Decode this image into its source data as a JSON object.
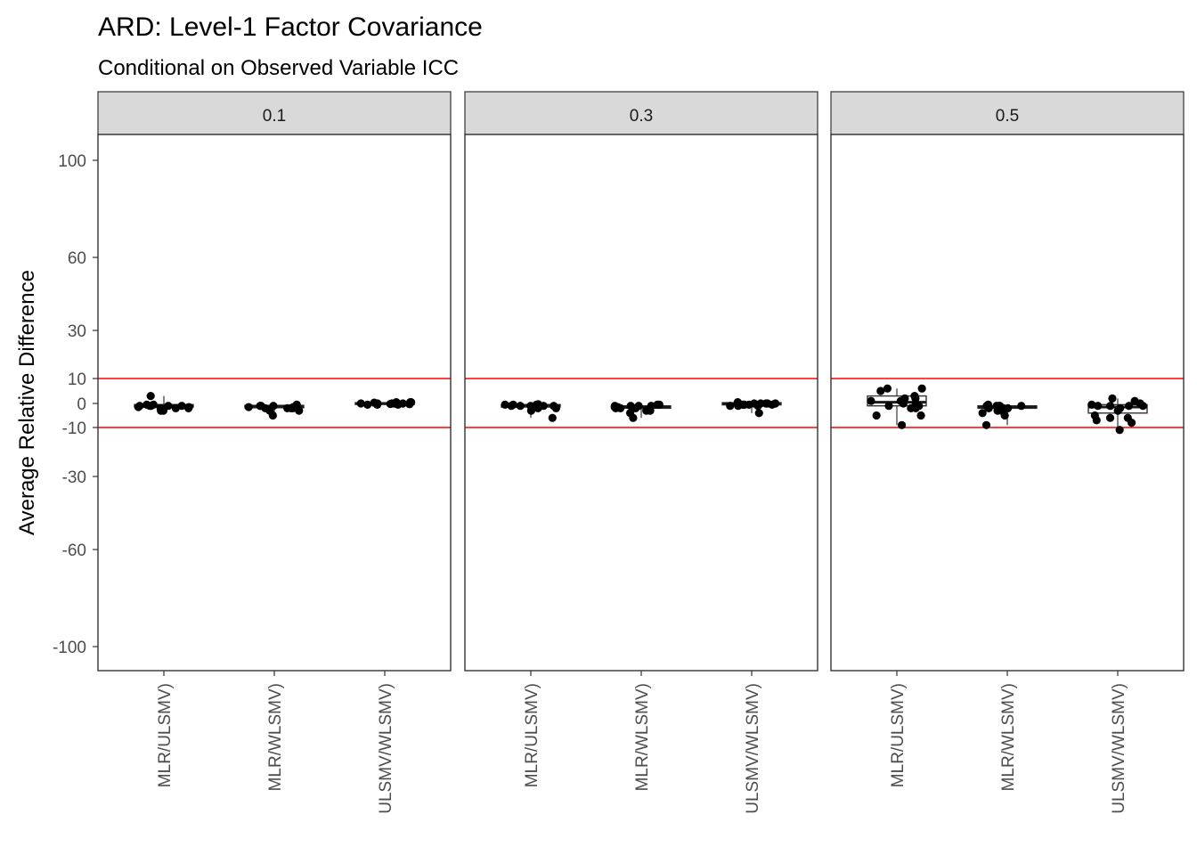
{
  "chart_data": {
    "type": "box",
    "title": "ARD: Level-1 Factor Covariance",
    "subtitle": "Conditional on Observed Variable ICC",
    "xlabel": "",
    "ylabel": "Average Relative Difference",
    "y_ticks": [
      100,
      60,
      30,
      10,
      0,
      -10,
      -30,
      -60,
      -100
    ],
    "ylim": [
      -110,
      110
    ],
    "reference_lines": {
      "values": [
        10,
        -10
      ],
      "color": "#ff0000"
    },
    "categories": [
      "MLR/ULSMV)",
      "MLR/WLSMV)",
      "ULSMV/WLSMV)"
    ],
    "grid": false,
    "legend": "none",
    "panels": [
      {
        "label": "0.1",
        "groups": [
          {
            "category": "MLR/ULSMV)",
            "box": {
              "q1": -1.5,
              "median": -0.8,
              "q3": -0.5
            },
            "points": [
              -2,
              -3,
              -1,
              -1.5,
              -0.5,
              -1,
              -2,
              3,
              -1,
              -0.5,
              -2,
              -1,
              -1.5,
              -3,
              -1
            ]
          },
          {
            "category": "MLR/WLSMV)",
            "box": {
              "q1": -1.8,
              "median": -1.2,
              "q3": -0.8
            },
            "points": [
              -1,
              -2,
              -1.5,
              -3,
              -2,
              -1,
              -1.5,
              -3,
              -1,
              -2,
              -1.5,
              -5,
              -1,
              -2,
              -0.5
            ]
          },
          {
            "category": "ULSMV/WLSMV)",
            "box": {
              "q1": -0.4,
              "median": 0,
              "q3": 0.3
            },
            "points": [
              0,
              -0.5,
              0.5,
              0,
              -0.5,
              0,
              0.5,
              0,
              -0.3,
              0,
              0.3,
              -0.5,
              0,
              0.5,
              -0.2
            ]
          }
        ]
      },
      {
        "label": "0.3",
        "groups": [
          {
            "category": "MLR/ULSMV)",
            "box": {
              "q1": -1.5,
              "median": -0.8,
              "q3": -0.5
            },
            "points": [
              -1,
              -6,
              -1,
              -0.5,
              -1,
              -2,
              -1,
              -3,
              -0.5,
              -1,
              -1,
              -2,
              -0.5,
              -0.3,
              -1
            ]
          },
          {
            "category": "MLR/WLSMV)",
            "box": {
              "q1": -2,
              "median": -1.5,
              "q3": -1
            },
            "points": [
              -2,
              -6,
              -1,
              -3,
              -1.5,
              -1,
              -2,
              -0.5,
              -3,
              -1,
              -1.5,
              -2,
              -4,
              -1,
              -0.5
            ]
          },
          {
            "category": "ULSMV/WLSMV)",
            "box": {
              "q1": -0.6,
              "median": 0,
              "q3": 0.3
            },
            "points": [
              0,
              -0.5,
              -0.5,
              -1,
              0,
              0.5,
              -0.5,
              0,
              -1,
              0,
              -0.5,
              -4,
              0,
              -0.5,
              -1
            ]
          }
        ]
      },
      {
        "label": "0.5",
        "groups": [
          {
            "category": "MLR/ULSMV)",
            "box": {
              "q1": -1,
              "median": 0.5,
              "q3": 3
            },
            "points": [
              -5,
              -2,
              -1,
              0,
              2,
              5,
              3,
              -1,
              -9,
              1,
              6,
              2,
              -5,
              0,
              6,
              1,
              -2
            ]
          },
          {
            "category": "MLR/WLSMV)",
            "box": {
              "q1": -2,
              "median": -1.5,
              "q3": -1
            },
            "points": [
              -1,
              -2,
              -5,
              -1,
              -2,
              -3,
              -1,
              -4,
              -9,
              -1,
              -2,
              -3,
              -1,
              -2,
              -0.5
            ]
          },
          {
            "category": "ULSMV/WLSMV)",
            "box": {
              "q1": -4,
              "median": -1.5,
              "q3": -0.5
            },
            "points": [
              -1,
              -5,
              -6,
              -11,
              0,
              1,
              -2,
              2,
              -6,
              -1,
              -8,
              -1,
              -7,
              -1,
              -0.5,
              -3
            ]
          }
        ]
      }
    ]
  }
}
